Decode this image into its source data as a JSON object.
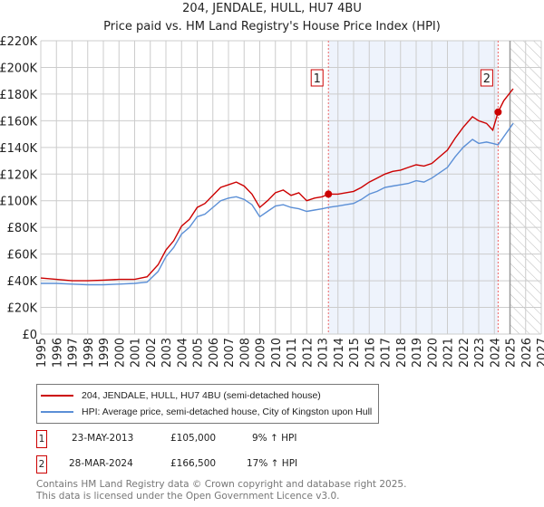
{
  "title": "204, JENDALE, HULL, HU7 4BU",
  "subtitle": "Price paid vs. HM Land Registry's House Price Index (HPI)",
  "chart_data": {
    "type": "line",
    "title": "204, JENDALE, HULL, HU7 4BU",
    "subtitle": "Price paid vs. HM Land Registry's House Price Index (HPI)",
    "xlim": [
      1995,
      2027
    ],
    "ylim": [
      0,
      220000
    ],
    "grid": true,
    "x_ticks": [
      "1995",
      "1996",
      "1997",
      "1998",
      "1999",
      "2000",
      "2001",
      "2002",
      "2003",
      "2004",
      "2005",
      "2006",
      "2007",
      "2008",
      "2009",
      "2010",
      "2011",
      "2012",
      "2013",
      "2014",
      "2015",
      "2016",
      "2017",
      "2018",
      "2019",
      "2020",
      "2021",
      "2022",
      "2023",
      "2024",
      "2025",
      "2026",
      "2027"
    ],
    "y_ticks": [
      {
        "v": 0,
        "l": "£0"
      },
      {
        "v": 20000,
        "l": "£20K"
      },
      {
        "v": 40000,
        "l": "£40K"
      },
      {
        "v": 60000,
        "l": "£60K"
      },
      {
        "v": 80000,
        "l": "£80K"
      },
      {
        "v": 100000,
        "l": "£100K"
      },
      {
        "v": 120000,
        "l": "£120K"
      },
      {
        "v": 140000,
        "l": "£140K"
      },
      {
        "v": 160000,
        "l": "£160K"
      },
      {
        "v": 180000,
        "l": "£180K"
      },
      {
        "v": 200000,
        "l": "£200K"
      },
      {
        "v": 220000,
        "l": "£220K"
      }
    ],
    "colors": {
      "property": "#cc0000",
      "hpi": "#5b8fd6",
      "shade": "#eef3fc",
      "marker_line": "#ee6666"
    },
    "forecast_from": 2025.0,
    "series": [
      {
        "name": "204, JENDALE, HULL, HU7 4BU (semi-detached house)",
        "key": "property",
        "x": [
          1995,
          1996,
          1997,
          1998,
          1999,
          2000,
          2001,
          2001.8,
          2002.5,
          2003,
          2003.5,
          2004,
          2004.5,
          2005,
          2005.5,
          2006,
          2006.5,
          2007,
          2007.5,
          2008,
          2008.5,
          2009,
          2009.5,
          2010,
          2010.5,
          2011,
          2011.5,
          2012,
          2012.5,
          2013,
          2013.39,
          2014,
          2014.5,
          2015,
          2015.5,
          2016,
          2016.5,
          2017,
          2017.5,
          2018,
          2018.5,
          2019,
          2019.5,
          2020,
          2020.5,
          2021,
          2021.5,
          2022,
          2022.6,
          2023,
          2023.5,
          2023.9,
          2024.24,
          2024.6,
          2025.2
        ],
        "y": [
          42000,
          41000,
          40000,
          40000,
          40500,
          41000,
          41000,
          43000,
          52000,
          63000,
          70000,
          81000,
          86000,
          95000,
          98000,
          104000,
          110000,
          112000,
          114000,
          111000,
          105000,
          95000,
          100000,
          106000,
          108000,
          104000,
          106000,
          100000,
          102000,
          103000,
          105000,
          105000,
          106000,
          107000,
          110000,
          114000,
          117000,
          120000,
          122000,
          123000,
          125000,
          127000,
          126000,
          128000,
          133000,
          138000,
          147000,
          155000,
          163000,
          160000,
          158000,
          153000,
          166500,
          175000,
          184000
        ]
      },
      {
        "name": "HPI: Average price, semi-detached house, City of Kingston upon Hull",
        "key": "hpi",
        "x": [
          1995,
          1996,
          1997,
          1998,
          1999,
          2000,
          2001,
          2001.8,
          2002.5,
          2003,
          2003.5,
          2004,
          2004.5,
          2005,
          2005.5,
          2006,
          2006.5,
          2007,
          2007.5,
          2008,
          2008.5,
          2009,
          2009.5,
          2010,
          2010.5,
          2011,
          2011.5,
          2012,
          2012.5,
          2013,
          2013.39,
          2014,
          2014.5,
          2015,
          2015.5,
          2016,
          2016.5,
          2017,
          2017.5,
          2018,
          2018.5,
          2019,
          2019.5,
          2020,
          2020.5,
          2021,
          2021.5,
          2022,
          2022.6,
          2023,
          2023.5,
          2023.9,
          2024.24,
          2024.6,
          2025.2
        ],
        "y": [
          38000,
          38000,
          37500,
          37000,
          37000,
          37500,
          38000,
          39000,
          47000,
          58000,
          65000,
          75000,
          80000,
          88000,
          90000,
          95000,
          100000,
          102000,
          103000,
          101000,
          97000,
          88000,
          92000,
          96000,
          97000,
          95000,
          94000,
          92000,
          93000,
          94000,
          95000,
          96000,
          97000,
          98000,
          101000,
          105000,
          107000,
          110000,
          111000,
          112000,
          113000,
          115000,
          114000,
          117000,
          121000,
          125000,
          133000,
          140000,
          146000,
          143000,
          144000,
          143000,
          142000,
          148000,
          158000
        ]
      }
    ],
    "sales": [
      {
        "label": "1",
        "x": 2013.39,
        "y": 105000,
        "date": "23-MAY-2013",
        "price": "£105,000",
        "hpi": "9% ↑ HPI"
      },
      {
        "label": "2",
        "x": 2024.24,
        "y": 166500,
        "date": "28-MAR-2024",
        "price": "£166,500",
        "hpi": "17% ↑ HPI"
      }
    ]
  },
  "legend": {
    "property": "204, JENDALE, HULL, HU7 4BU (semi-detached house)",
    "hpi": "HPI: Average price, semi-detached house, City of Kingston upon Hull"
  },
  "footer": {
    "line1": "Contains HM Land Registry data © Crown copyright and database right 2025.",
    "line2": "This data is licensed under the Open Government Licence v3.0."
  }
}
